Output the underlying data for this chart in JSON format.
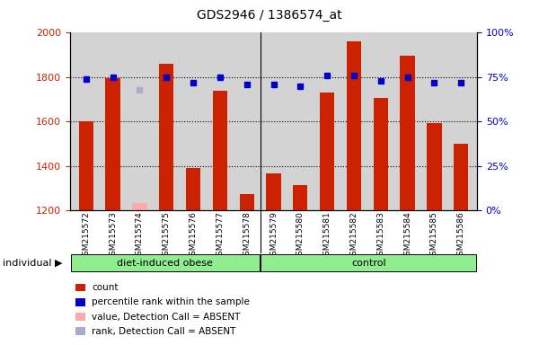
{
  "title": "GDS2946 / 1386574_at",
  "samples": [
    "GSM215572",
    "GSM215573",
    "GSM215574",
    "GSM215575",
    "GSM215576",
    "GSM215577",
    "GSM215578",
    "GSM215579",
    "GSM215580",
    "GSM215581",
    "GSM215582",
    "GSM215583",
    "GSM215584",
    "GSM215585",
    "GSM215586"
  ],
  "counts": [
    1600,
    1795,
    null,
    1860,
    1390,
    1740,
    1275,
    1365,
    1315,
    1730,
    1960,
    1705,
    1895,
    1595,
    1500
  ],
  "absent_counts": [
    null,
    null,
    1235,
    null,
    null,
    null,
    null,
    null,
    null,
    null,
    null,
    null,
    null,
    null,
    null
  ],
  "ranks": [
    74,
    75,
    null,
    75,
    72,
    75,
    71,
    71,
    70,
    76,
    76,
    73,
    75,
    72,
    72
  ],
  "absent_ranks": [
    null,
    null,
    68,
    null,
    null,
    null,
    null,
    null,
    null,
    null,
    null,
    null,
    null,
    null,
    null
  ],
  "group_labels": [
    "diet-induced obese",
    "control"
  ],
  "group_sizes": [
    7,
    8
  ],
  "ylim_left": [
    1200,
    2000
  ],
  "ylim_right": [
    0,
    100
  ],
  "yticks_left": [
    1200,
    1400,
    1600,
    1800,
    2000
  ],
  "yticks_right": [
    0,
    25,
    50,
    75,
    100
  ],
  "bar_color": "#cc2200",
  "absent_bar_color": "#ffaaaa",
  "rank_color": "#0000cc",
  "absent_rank_color": "#aaaacc",
  "plot_bg_color": "#d3d3d3",
  "group_color": "#90ee90",
  "legend_items": [
    {
      "label": "count",
      "color": "#cc2200"
    },
    {
      "label": "percentile rank within the sample",
      "color": "#0000cc"
    },
    {
      "label": "value, Detection Call = ABSENT",
      "color": "#ffaaaa"
    },
    {
      "label": "rank, Detection Call = ABSENT",
      "color": "#aaaacc"
    }
  ]
}
